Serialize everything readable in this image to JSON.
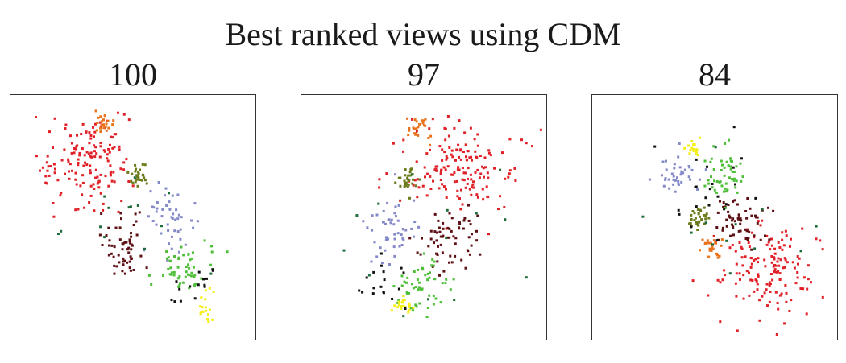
{
  "title": "Best ranked views using CDM",
  "colors": {
    "red": "#e02128",
    "orange": "#e8731c",
    "olive": "#6b7a1a",
    "lavender": "#8489c8",
    "maroon": "#5c1014",
    "green": "#4fbf3a",
    "yellow": "#f4ee1a",
    "black": "#111111",
    "darkgreen": "#1f6b3a"
  },
  "chart_data": [
    {
      "type": "scatter",
      "title": "100",
      "xlim": [
        0,
        1
      ],
      "ylim": [
        0,
        1
      ],
      "grid": false,
      "legend": "none",
      "clusters": [
        {
          "color": "red",
          "cx": 0.3,
          "cy": 0.74,
          "sx": 0.09,
          "sy": 0.09,
          "n": 150
        },
        {
          "color": "orange",
          "cx": 0.37,
          "cy": 0.89,
          "sx": 0.022,
          "sy": 0.022,
          "n": 22
        },
        {
          "color": "olive",
          "cx": 0.52,
          "cy": 0.67,
          "sx": 0.018,
          "sy": 0.022,
          "n": 28
        },
        {
          "color": "lavender",
          "cx": 0.65,
          "cy": 0.49,
          "sx": 0.05,
          "sy": 0.07,
          "n": 45
        },
        {
          "color": "maroon",
          "cx": 0.46,
          "cy": 0.38,
          "sx": 0.05,
          "sy": 0.06,
          "n": 60
        },
        {
          "color": "green",
          "cx": 0.7,
          "cy": 0.29,
          "sx": 0.06,
          "sy": 0.05,
          "n": 55
        },
        {
          "color": "yellow",
          "cx": 0.79,
          "cy": 0.14,
          "sx": 0.015,
          "sy": 0.03,
          "n": 18
        },
        {
          "color": "black",
          "cx": 0.73,
          "cy": 0.23,
          "sx": 0.05,
          "sy": 0.05,
          "n": 15
        },
        {
          "color": "darkgreen",
          "cx": 0.45,
          "cy": 0.5,
          "sx": 0.18,
          "sy": 0.15,
          "n": 14
        }
      ]
    },
    {
      "type": "scatter",
      "title": "97",
      "xlim": [
        0,
        1
      ],
      "ylim": [
        0,
        1
      ],
      "grid": false,
      "legend": "none",
      "clusters": [
        {
          "color": "red",
          "cx": 0.65,
          "cy": 0.7,
          "sx": 0.11,
          "sy": 0.1,
          "n": 160
        },
        {
          "color": "orange",
          "cx": 0.48,
          "cy": 0.87,
          "sx": 0.022,
          "sy": 0.025,
          "n": 24
        },
        {
          "color": "olive",
          "cx": 0.43,
          "cy": 0.66,
          "sx": 0.022,
          "sy": 0.025,
          "n": 30
        },
        {
          "color": "lavender",
          "cx": 0.36,
          "cy": 0.45,
          "sx": 0.055,
          "sy": 0.08,
          "n": 50
        },
        {
          "color": "maroon",
          "cx": 0.6,
          "cy": 0.39,
          "sx": 0.06,
          "sy": 0.07,
          "n": 65
        },
        {
          "color": "green",
          "cx": 0.47,
          "cy": 0.22,
          "sx": 0.06,
          "sy": 0.06,
          "n": 55
        },
        {
          "color": "yellow",
          "cx": 0.41,
          "cy": 0.15,
          "sx": 0.03,
          "sy": 0.025,
          "n": 20
        },
        {
          "color": "black",
          "cx": 0.37,
          "cy": 0.22,
          "sx": 0.07,
          "sy": 0.06,
          "n": 18
        },
        {
          "color": "darkgreen",
          "cx": 0.5,
          "cy": 0.45,
          "sx": 0.2,
          "sy": 0.15,
          "n": 14
        }
      ]
    },
    {
      "type": "scatter",
      "title": "84",
      "xlim": [
        0,
        1
      ],
      "ylim": [
        0,
        1
      ],
      "grid": false,
      "legend": "none",
      "clusters": [
        {
          "color": "red",
          "cx": 0.72,
          "cy": 0.28,
          "sx": 0.11,
          "sy": 0.09,
          "n": 150
        },
        {
          "color": "orange",
          "cx": 0.48,
          "cy": 0.38,
          "sx": 0.025,
          "sy": 0.03,
          "n": 24
        },
        {
          "color": "olive",
          "cx": 0.43,
          "cy": 0.51,
          "sx": 0.025,
          "sy": 0.022,
          "n": 30
        },
        {
          "color": "lavender",
          "cx": 0.35,
          "cy": 0.68,
          "sx": 0.05,
          "sy": 0.035,
          "n": 40
        },
        {
          "color": "maroon",
          "cx": 0.6,
          "cy": 0.49,
          "sx": 0.06,
          "sy": 0.05,
          "n": 60
        },
        {
          "color": "green",
          "cx": 0.54,
          "cy": 0.68,
          "sx": 0.04,
          "sy": 0.07,
          "n": 50
        },
        {
          "color": "yellow",
          "cx": 0.41,
          "cy": 0.79,
          "sx": 0.015,
          "sy": 0.015,
          "n": 18
        },
        {
          "color": "black",
          "cx": 0.45,
          "cy": 0.63,
          "sx": 0.1,
          "sy": 0.1,
          "n": 22
        },
        {
          "color": "darkgreen",
          "cx": 0.55,
          "cy": 0.4,
          "sx": 0.16,
          "sy": 0.14,
          "n": 12
        }
      ]
    }
  ]
}
